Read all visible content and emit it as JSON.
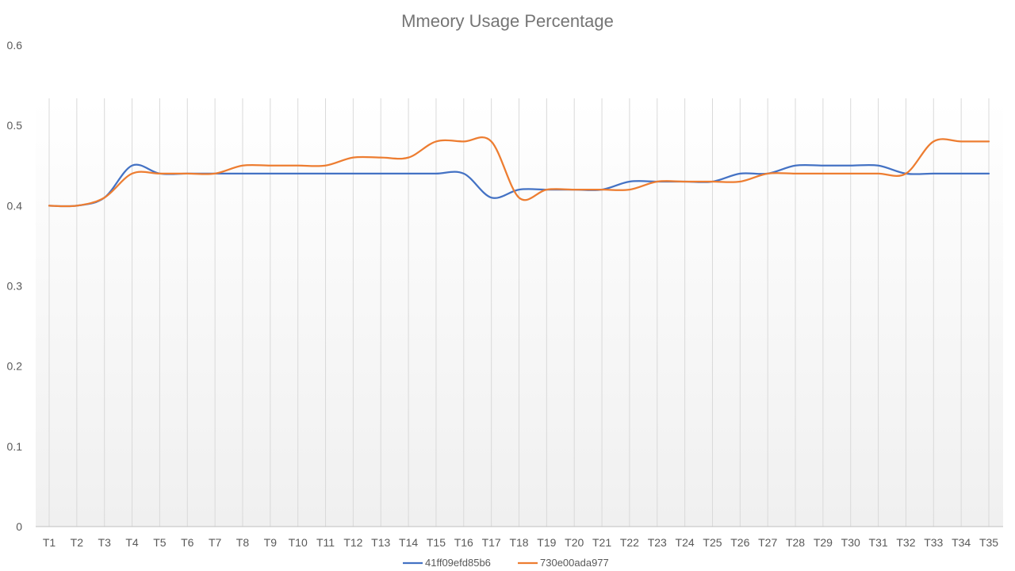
{
  "chart_data": {
    "type": "line",
    "title": "Mmeory Usage Percentage",
    "xlabel": "",
    "ylabel": "",
    "ylim": [
      0,
      0.6
    ],
    "yticks": [
      "0",
      "0.1",
      "0.2",
      "0.3",
      "0.4",
      "0.5",
      "0.6"
    ],
    "grid": "vertical",
    "legend_position": "bottom",
    "categories": [
      "T1",
      "T2",
      "T3",
      "T4",
      "T5",
      "T6",
      "T7",
      "T8",
      "T9",
      "T10",
      "T11",
      "T12",
      "T13",
      "T14",
      "T15",
      "T16",
      "T17",
      "T18",
      "T19",
      "T20",
      "T21",
      "T22",
      "T23",
      "T24",
      "T25",
      "T26",
      "T27",
      "T28",
      "T29",
      "T30",
      "T31",
      "T32",
      "T33",
      "T34",
      "T35"
    ],
    "series": [
      {
        "name": "41ff09efd85b6",
        "color": "#4472C4",
        "values": [
          0.4,
          0.4,
          0.41,
          0.45,
          0.44,
          0.44,
          0.44,
          0.44,
          0.44,
          0.44,
          0.44,
          0.44,
          0.44,
          0.44,
          0.44,
          0.44,
          0.41,
          0.42,
          0.42,
          0.42,
          0.42,
          0.43,
          0.43,
          0.43,
          0.43,
          0.44,
          0.44,
          0.45,
          0.45,
          0.45,
          0.45,
          0.44,
          0.44,
          0.44,
          0.44
        ]
      },
      {
        "name": "730e00ada977",
        "color": "#ED7D31",
        "values": [
          0.4,
          0.4,
          0.41,
          0.44,
          0.44,
          0.44,
          0.44,
          0.45,
          0.45,
          0.45,
          0.45,
          0.46,
          0.46,
          0.46,
          0.48,
          0.48,
          0.48,
          0.41,
          0.42,
          0.42,
          0.42,
          0.42,
          0.43,
          0.43,
          0.43,
          0.43,
          0.44,
          0.44,
          0.44,
          0.44,
          0.44,
          0.44,
          0.48,
          0.48,
          0.48
        ]
      }
    ]
  }
}
